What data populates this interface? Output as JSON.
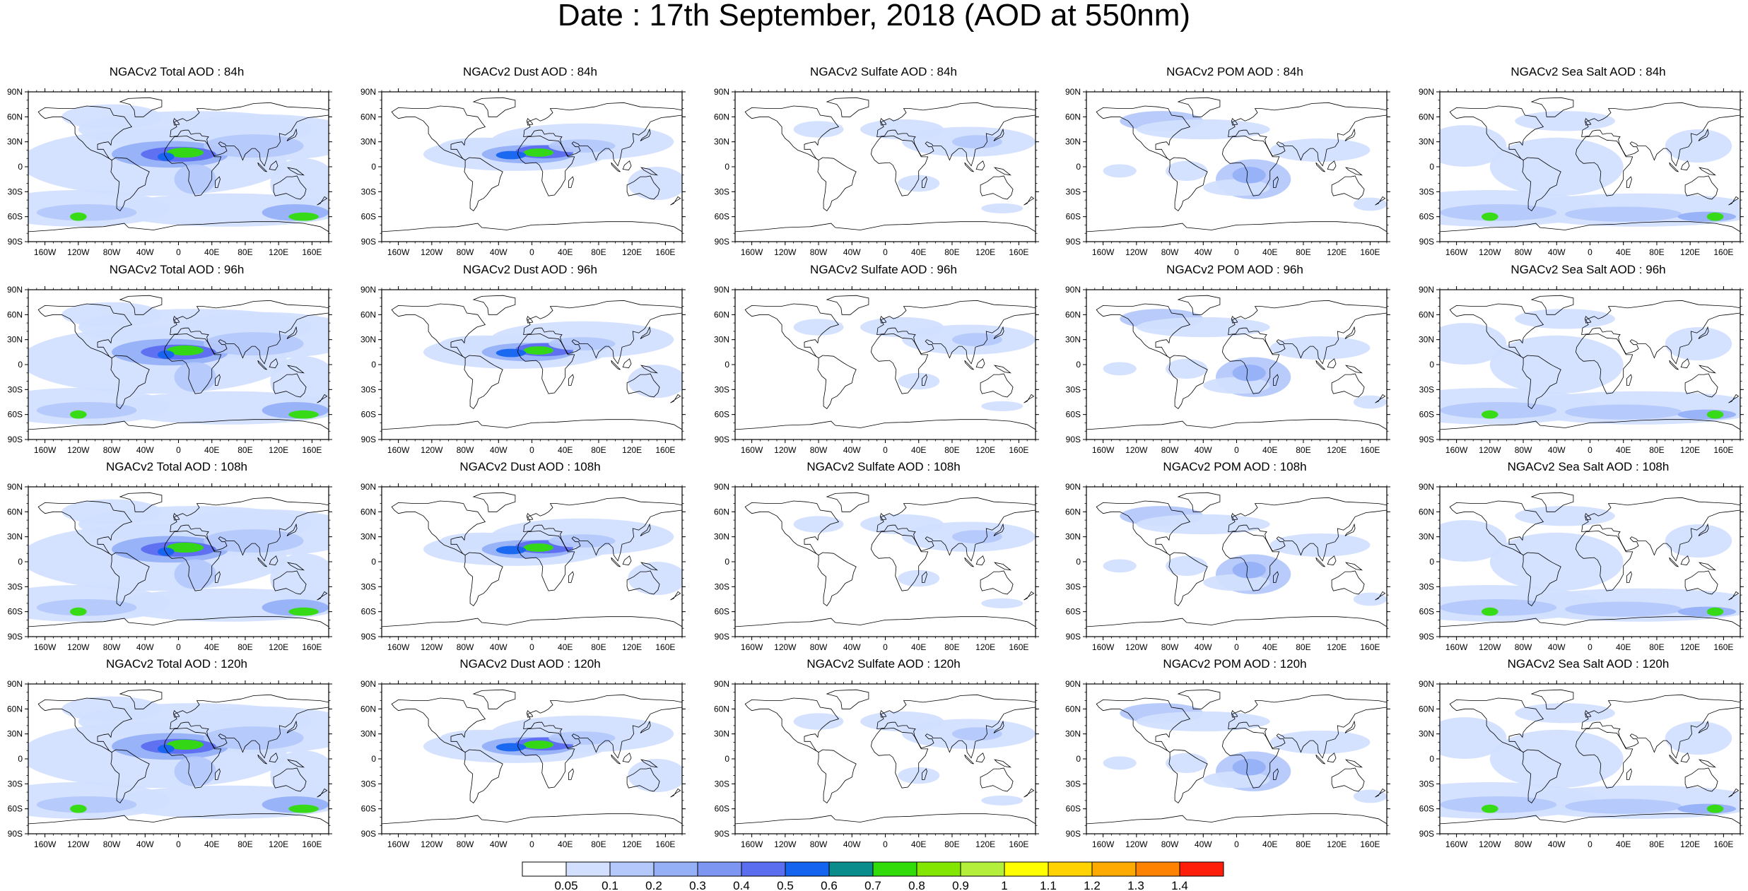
{
  "title": "Date : 17th September, 2018 (AOD at 550nm)",
  "panels": [
    {
      "title": "NGACv2 Total AOD : 84h",
      "species": "total",
      "hour": "84h"
    },
    {
      "title": "NGACv2 Dust AOD : 84h",
      "species": "dust",
      "hour": "84h"
    },
    {
      "title": "NGACv2 Sulfate AOD : 84h",
      "species": "sulfate",
      "hour": "84h"
    },
    {
      "title": "NGACv2 POM AOD : 84h",
      "species": "pom",
      "hour": "84h"
    },
    {
      "title": "NGACv2 Sea Salt AOD : 84h",
      "species": "seasalt",
      "hour": "84h"
    },
    {
      "title": "NGACv2 Total AOD : 96h",
      "species": "total",
      "hour": "96h"
    },
    {
      "title": "NGACv2 Dust AOD : 96h",
      "species": "dust",
      "hour": "96h"
    },
    {
      "title": "NGACv2 Sulfate AOD : 96h",
      "species": "sulfate",
      "hour": "96h"
    },
    {
      "title": "NGACv2 POM AOD : 96h",
      "species": "pom",
      "hour": "96h"
    },
    {
      "title": "NGACv2 Sea Salt AOD : 96h",
      "species": "seasalt",
      "hour": "96h"
    },
    {
      "title": "NGACv2 Total AOD : 108h",
      "species": "total",
      "hour": "108h"
    },
    {
      "title": "NGACv2 Dust AOD : 108h",
      "species": "dust",
      "hour": "108h"
    },
    {
      "title": "NGACv2 Sulfate AOD : 108h",
      "species": "sulfate",
      "hour": "108h"
    },
    {
      "title": "NGACv2 POM AOD : 108h",
      "species": "pom",
      "hour": "108h"
    },
    {
      "title": "NGACv2 Sea Salt AOD : 108h",
      "species": "seasalt",
      "hour": "108h"
    },
    {
      "title": "NGACv2 Total AOD : 120h",
      "species": "total",
      "hour": "120h"
    },
    {
      "title": "NGACv2 Dust AOD : 120h",
      "species": "dust",
      "hour": "120h"
    },
    {
      "title": "NGACv2 Sulfate AOD : 120h",
      "species": "sulfate",
      "hour": "120h"
    },
    {
      "title": "NGACv2 POM AOD : 120h",
      "species": "pom",
      "hour": "120h"
    },
    {
      "title": "NGACv2 Sea Salt  AOD : 120h",
      "species": "seasalt",
      "hour": "120h"
    }
  ],
  "lat_labels": [
    "90N",
    "60N",
    "30N",
    "0",
    "30S",
    "60S",
    "90S"
  ],
  "lon_labels": [
    "160W",
    "120W",
    "80W",
    "40W",
    "0",
    "40E",
    "80E",
    "120E",
    "160E"
  ],
  "colorbar": {
    "labels": [
      "0.05",
      "0.1",
      "0.2",
      "0.3",
      "0.4",
      "0.5",
      "0.6",
      "0.7",
      "0.8",
      "0.9",
      "1",
      "1.1",
      "1.2",
      "1.3",
      "1.4"
    ],
    "colors": [
      "#ffffff",
      "#d2dfff",
      "#b4c8fb",
      "#96b0f8",
      "#7c96f2",
      "#5c6ef0",
      "#1464f0",
      "#0a8c8c",
      "#32dc0a",
      "#82e600",
      "#b4ef3c",
      "#ffff00",
      "#ffd200",
      "#ffaa00",
      "#ff8200",
      "#ff1e0a"
    ]
  }
}
